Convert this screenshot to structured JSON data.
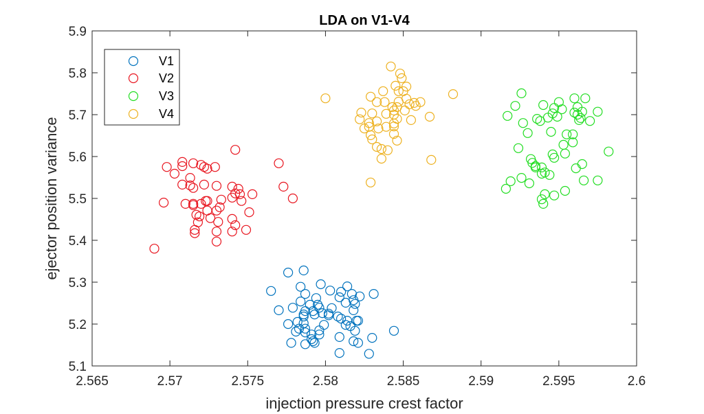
{
  "chart_data": {
    "type": "scatter",
    "title": "LDA on V1-V4",
    "xlabel": "injection pressure crest factor",
    "ylabel": "ejector position variance",
    "xlim": [
      2.565,
      2.6
    ],
    "ylim": [
      5.1,
      5.9
    ],
    "xticks": [
      2.565,
      2.57,
      2.575,
      2.58,
      2.585,
      2.59,
      2.595,
      2.6
    ],
    "xtick_labels": [
      "2.565",
      "2.57",
      "2.575",
      "2.58",
      "2.585",
      "2.59",
      "2.595",
      "2.6"
    ],
    "yticks": [
      5.1,
      5.2,
      5.3,
      5.4,
      5.5,
      5.6,
      5.7,
      5.8,
      5.9
    ],
    "ytick_labels": [
      "5.1",
      "5.2",
      "5.3",
      "5.4",
      "5.5",
      "5.6",
      "5.7",
      "5.8",
      "5.9"
    ],
    "grid": false,
    "marker": "open-circle",
    "legend": {
      "placement": "top-left",
      "entries": [
        "V1",
        "V2",
        "V3",
        "V4"
      ]
    },
    "series": [
      {
        "name": "V1",
        "color": "#0072BD",
        "points": [
          [
            2.5776,
            5.323
          ],
          [
            2.5786,
            5.328
          ],
          [
            2.5765,
            5.279
          ],
          [
            2.5784,
            5.289
          ],
          [
            2.5797,
            5.295
          ],
          [
            2.5814,
            5.29
          ],
          [
            2.5803,
            5.28
          ],
          [
            2.581,
            5.277
          ],
          [
            2.5787,
            5.272
          ],
          [
            2.5794,
            5.262
          ],
          [
            2.5809,
            5.264
          ],
          [
            2.5817,
            5.272
          ],
          [
            2.5822,
            5.266
          ],
          [
            2.5831,
            5.272
          ],
          [
            2.5784,
            5.254
          ],
          [
            2.5818,
            5.257
          ],
          [
            2.5813,
            5.251
          ],
          [
            2.5819,
            5.248
          ],
          [
            2.577,
            5.233
          ],
          [
            2.5779,
            5.239
          ],
          [
            2.579,
            5.246
          ],
          [
            2.5795,
            5.246
          ],
          [
            2.5796,
            5.239
          ],
          [
            2.5804,
            5.238
          ],
          [
            2.5818,
            5.233
          ],
          [
            2.5787,
            5.231
          ],
          [
            2.5792,
            5.231
          ],
          [
            2.5786,
            5.223
          ],
          [
            2.5786,
            5.218
          ],
          [
            2.5798,
            5.226
          ],
          [
            2.5802,
            5.225
          ],
          [
            2.5802,
            5.221
          ],
          [
            2.5793,
            5.223
          ],
          [
            2.5808,
            5.218
          ],
          [
            2.581,
            5.213
          ],
          [
            2.5814,
            5.208
          ],
          [
            2.582,
            5.208
          ],
          [
            2.5821,
            5.208
          ],
          [
            2.5776,
            5.2
          ],
          [
            2.5782,
            5.205
          ],
          [
            2.5786,
            5.202
          ],
          [
            2.5799,
            5.198
          ],
          [
            2.5813,
            5.198
          ],
          [
            2.5816,
            5.195
          ],
          [
            2.5783,
            5.189
          ],
          [
            2.5787,
            5.189
          ],
          [
            2.5781,
            5.182
          ],
          [
            2.5796,
            5.185
          ],
          [
            2.5819,
            5.184
          ],
          [
            2.5787,
            5.18
          ],
          [
            2.5791,
            5.175
          ],
          [
            2.5796,
            5.175
          ],
          [
            2.5791,
            5.164
          ],
          [
            2.5792,
            5.159
          ],
          [
            2.5793,
            5.155
          ],
          [
            2.5778,
            5.155
          ],
          [
            2.5787,
            5.152
          ],
          [
            2.5809,
            5.169
          ],
          [
            2.5818,
            5.159
          ],
          [
            2.5821,
            5.155
          ],
          [
            2.583,
            5.167
          ],
          [
            2.5844,
            5.184
          ],
          [
            2.5809,
            5.131
          ],
          [
            2.5828,
            5.129
          ]
        ]
      },
      {
        "name": "V2",
        "color": "#E8141E",
        "points": [
          [
            2.5742,
            5.616
          ],
          [
            2.5698,
            5.575
          ],
          [
            2.5708,
            5.587
          ],
          [
            2.5708,
            5.577
          ],
          [
            2.5715,
            5.584
          ],
          [
            2.572,
            5.58
          ],
          [
            2.5722,
            5.575
          ],
          [
            2.5724,
            5.571
          ],
          [
            2.5729,
            5.575
          ],
          [
            2.5703,
            5.559
          ],
          [
            2.577,
            5.584
          ],
          [
            2.5713,
            5.549
          ],
          [
            2.5708,
            5.533
          ],
          [
            2.5713,
            5.531
          ],
          [
            2.5715,
            5.525
          ],
          [
            2.5722,
            5.533
          ],
          [
            2.573,
            5.53
          ],
          [
            2.574,
            5.528
          ],
          [
            2.5744,
            5.523
          ],
          [
            2.5742,
            5.512
          ],
          [
            2.5745,
            5.51
          ],
          [
            2.574,
            5.502
          ],
          [
            2.5753,
            5.51
          ],
          [
            2.5773,
            5.528
          ],
          [
            2.5779,
            5.5
          ],
          [
            2.5696,
            5.49
          ],
          [
            2.571,
            5.487
          ],
          [
            2.5715,
            5.487
          ],
          [
            2.5715,
            5.484
          ],
          [
            2.572,
            5.487
          ],
          [
            2.5723,
            5.494
          ],
          [
            2.5724,
            5.494
          ],
          [
            2.5733,
            5.497
          ],
          [
            2.5746,
            5.494
          ],
          [
            2.5732,
            5.479
          ],
          [
            2.573,
            5.471
          ],
          [
            2.5724,
            5.471
          ],
          [
            2.5751,
            5.467
          ],
          [
            2.5717,
            5.461
          ],
          [
            2.5719,
            5.457
          ],
          [
            2.5726,
            5.453
          ],
          [
            2.5718,
            5.443
          ],
          [
            2.5731,
            5.444
          ],
          [
            2.574,
            5.451
          ],
          [
            2.5742,
            5.436
          ],
          [
            2.5749,
            5.425
          ],
          [
            2.574,
            5.421
          ],
          [
            2.573,
            5.421
          ],
          [
            2.5716,
            5.425
          ],
          [
            2.5716,
            5.417
          ],
          [
            2.573,
            5.397
          ],
          [
            2.569,
            5.38
          ]
        ]
      },
      {
        "name": "V3",
        "color": "#22DD22",
        "points": [
          [
            2.5926,
            5.751
          ],
          [
            2.5922,
            5.721
          ],
          [
            2.5917,
            5.697
          ],
          [
            2.5927,
            5.68
          ],
          [
            2.593,
            5.656
          ],
          [
            2.594,
            5.723
          ],
          [
            2.595,
            5.73
          ],
          [
            2.5947,
            5.716
          ],
          [
            2.5952,
            5.713
          ],
          [
            2.5946,
            5.703
          ],
          [
            2.5943,
            5.693
          ],
          [
            2.5949,
            5.695
          ],
          [
            2.5936,
            5.69
          ],
          [
            2.5938,
            5.685
          ],
          [
            2.596,
            5.739
          ],
          [
            2.5967,
            5.739
          ],
          [
            2.5962,
            5.718
          ],
          [
            2.596,
            5.705
          ],
          [
            2.5965,
            5.707
          ],
          [
            2.5962,
            5.7
          ],
          [
            2.5964,
            5.692
          ],
          [
            2.5963,
            5.687
          ],
          [
            2.597,
            5.685
          ],
          [
            2.5975,
            5.707
          ],
          [
            2.5945,
            5.659
          ],
          [
            2.5955,
            5.653
          ],
          [
            2.5959,
            5.653
          ],
          [
            2.5959,
            5.634
          ],
          [
            2.5953,
            5.628
          ],
          [
            2.5954,
            5.607
          ],
          [
            2.5924,
            5.62
          ],
          [
            2.5982,
            5.612
          ],
          [
            2.5946,
            5.605
          ],
          [
            2.5947,
            5.597
          ],
          [
            2.5932,
            5.594
          ],
          [
            2.5933,
            5.585
          ],
          [
            2.5935,
            5.577
          ],
          [
            2.5935,
            5.574
          ],
          [
            2.5939,
            5.574
          ],
          [
            2.5941,
            5.562
          ],
          [
            2.5939,
            5.559
          ],
          [
            2.5944,
            5.556
          ],
          [
            2.5965,
            5.582
          ],
          [
            2.5961,
            5.572
          ],
          [
            2.5926,
            5.549
          ],
          [
            2.5931,
            5.536
          ],
          [
            2.5919,
            5.541
          ],
          [
            2.5916,
            5.523
          ],
          [
            2.5966,
            5.543
          ],
          [
            2.5975,
            5.543
          ],
          [
            2.5954,
            5.518
          ],
          [
            2.5947,
            5.507
          ],
          [
            2.5941,
            5.51
          ],
          [
            2.5939,
            5.498
          ],
          [
            2.594,
            5.487
          ]
        ]
      },
      {
        "name": "V4",
        "color": "#EDB120",
        "points": [
          [
            2.5842,
            5.815
          ],
          [
            2.5848,
            5.798
          ],
          [
            2.5849,
            5.787
          ],
          [
            2.5845,
            5.769
          ],
          [
            2.5852,
            5.767
          ],
          [
            2.5847,
            5.756
          ],
          [
            2.585,
            5.756
          ],
          [
            2.5837,
            5.756
          ],
          [
            2.58,
            5.739
          ],
          [
            2.5882,
            5.749
          ],
          [
            2.5829,
            5.743
          ],
          [
            2.5833,
            5.73
          ],
          [
            2.5838,
            5.73
          ],
          [
            2.5847,
            5.731
          ],
          [
            2.5852,
            5.738
          ],
          [
            2.5854,
            5.725
          ],
          [
            2.5857,
            5.728
          ],
          [
            2.5858,
            5.721
          ],
          [
            2.5861,
            5.73
          ],
          [
            2.5843,
            5.718
          ],
          [
            2.5846,
            5.718
          ],
          [
            2.5844,
            5.71
          ],
          [
            2.5851,
            5.71
          ],
          [
            2.5823,
            5.705
          ],
          [
            2.583,
            5.703
          ],
          [
            2.5839,
            5.702
          ],
          [
            2.5844,
            5.7
          ],
          [
            2.5822,
            5.689
          ],
          [
            2.5846,
            5.69
          ],
          [
            2.5855,
            5.687
          ],
          [
            2.5867,
            5.695
          ],
          [
            2.5828,
            5.68
          ],
          [
            2.5833,
            5.684
          ],
          [
            2.5844,
            5.679
          ],
          [
            2.5825,
            5.667
          ],
          [
            2.5828,
            5.671
          ],
          [
            2.5834,
            5.667
          ],
          [
            2.5839,
            5.671
          ],
          [
            2.5844,
            5.672
          ],
          [
            2.5844,
            5.654
          ],
          [
            2.5829,
            5.651
          ],
          [
            2.583,
            5.641
          ],
          [
            2.5846,
            5.638
          ],
          [
            2.5833,
            5.623
          ],
          [
            2.5836,
            5.618
          ],
          [
            2.584,
            5.615
          ],
          [
            2.5836,
            5.595
          ],
          [
            2.5868,
            5.592
          ],
          [
            2.5829,
            5.538
          ]
        ]
      }
    ]
  }
}
